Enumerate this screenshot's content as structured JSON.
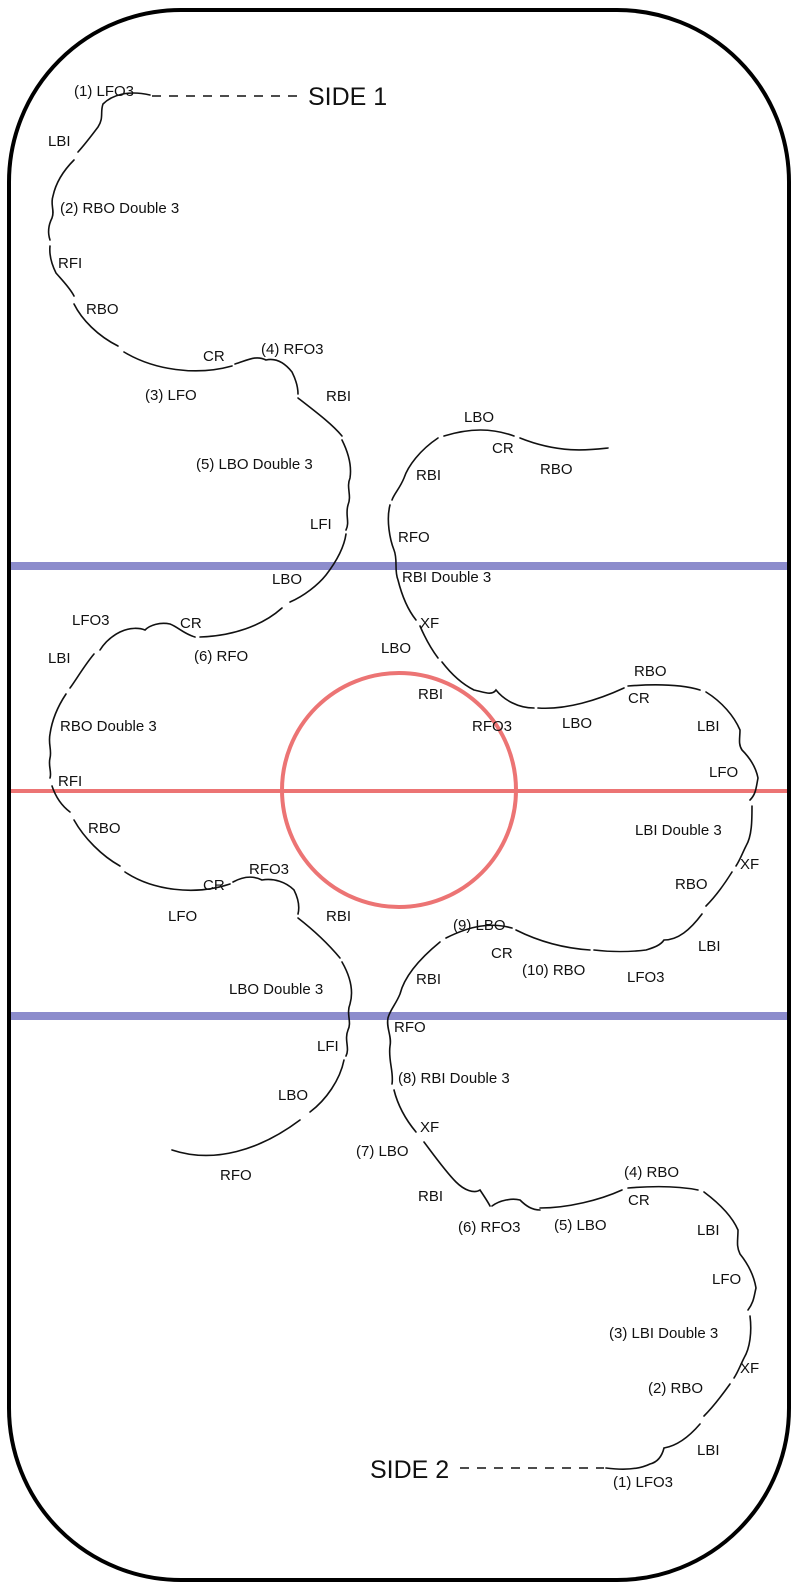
{
  "colors": {
    "blue_line": "#8c8ccc",
    "red_line": "#ec7474",
    "center_circle": "#ec7474",
    "board": "#000000"
  },
  "side1": {
    "title": "SIDE 1",
    "labels": {
      "s1_lfo3": "(1) LFO3",
      "s1_lbi": "LBI",
      "s1_rbo_d3": "(2) RBO Double 3",
      "s1_rfi": "RFI",
      "s1_rbo": "RBO",
      "s1_cr": "CR",
      "s1_rfo3": "(4) RFO3",
      "s1_lfo": "(3) LFO",
      "s1_rbi": "RBI",
      "s1_lbo_d3": "(5) LBO Double 3",
      "s1_lfi": "LFI",
      "s1_lbo": "LBO",
      "s1_lfo3b": "LFO3",
      "s1_cr2": "CR",
      "s1_rfo": "(6) RFO",
      "s1_lbi2": "LBI",
      "s1_rbo_d3b": "RBO Double 3",
      "s1_rfi2": "RFI",
      "s1_rbo2": "RBO",
      "s1_cr3": "CR",
      "s1_rfo3b": "RFO3",
      "s1_lfo2": "LFO",
      "s1_rbi2": "RBI",
      "s1_lbo_d3b": "LBO Double 3",
      "s1_lfi2": "LFI",
      "s1_lbo2": "LBO",
      "s1_rfo2": "RFO",
      "s1_rlbo": "LBO",
      "s1_rcr": "CR",
      "s1_rrbo": "RBO",
      "s1_rrbi": "RBI",
      "s1_rrfo": "RFO",
      "s1_rrbi_d3": "RBI Double 3",
      "s1_rxf": "XF",
      "s1_rlbo2": "LBO",
      "s1_rrbi2": "RBI",
      "s1_rrfo3": "RFO3",
      "s1_rlbo3": "LBO",
      "s1_rrbo2": "RBO",
      "s1_rcr2": "CR",
      "s1_rlbi": "LBI",
      "s1_rlfo": "LFO",
      "s1_rlbi_d3": "LBI Double 3",
      "s1_rxf2": "XF",
      "s1_rrbo3": "RBO",
      "s1_rlbi2": "LBI"
    }
  },
  "side2": {
    "title": "SIDE 2",
    "labels": {
      "s2_lbo9": "(9) LBO",
      "s2_cr": "CR",
      "s2_rbo10": "(10) RBO",
      "s2_lfo3": "LFO3",
      "s2_rbi": "RBI",
      "s2_rfo": "RFO",
      "s2_rbi_d3": "(8) RBI Double 3",
      "s2_xf": "XF",
      "s2_lbo7": "(7) LBO",
      "s2_rbi2": "RBI",
      "s2_rfo3": "(6) RFO3",
      "s2_lbo5": "(5) LBO",
      "s2_rbo4": "(4) RBO",
      "s2_cr2": "CR",
      "s2_lbi": "LBI",
      "s2_lfo": "LFO",
      "s2_lbi_d3": "(3) LBI Double 3",
      "s2_xf2": "XF",
      "s2_rbo2": "(2) RBO",
      "s2_lbi2": "LBI",
      "s2_lfo3_1": "(1) LFO3"
    }
  }
}
